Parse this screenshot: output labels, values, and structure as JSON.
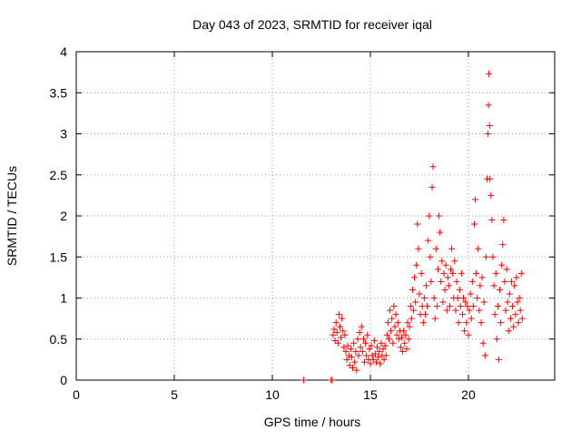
{
  "chart_data": {
    "type": "scatter",
    "title": "Day 043 of 2023, SRMTID for receiver iqal",
    "xlabel": "GPS time / hours",
    "ylabel": "SRMTID / TECUs",
    "xlim": [
      0,
      24.4
    ],
    "ylim": [
      0,
      4
    ],
    "xticks": [
      0,
      5,
      10,
      15,
      20
    ],
    "yticks": [
      0,
      0.5,
      1,
      1.5,
      2,
      2.5,
      3,
      3.5,
      4
    ],
    "xtick_labels": [
      "0",
      "5",
      "10",
      "15",
      "20"
    ],
    "ytick_labels": [
      "0",
      "0.5",
      "1",
      "1.5",
      "2",
      "2.5",
      "3",
      "3.5",
      "4"
    ],
    "grid": true,
    "marker": "+",
    "series": [
      {
        "name": "SRMTID",
        "color": "#ff0000",
        "points": [
          [
            11.6,
            0.0
          ],
          [
            13.0,
            0.0
          ],
          [
            13.05,
            0.0
          ],
          [
            13.1,
            0.55
          ],
          [
            13.15,
            0.62
          ],
          [
            13.2,
            0.48
          ],
          [
            13.25,
            0.7
          ],
          [
            13.3,
            0.58
          ],
          [
            13.35,
            0.45
          ],
          [
            13.4,
            0.8
          ],
          [
            13.45,
            0.65
          ],
          [
            13.5,
            0.52
          ],
          [
            13.55,
            0.75
          ],
          [
            13.6,
            0.6
          ],
          [
            13.65,
            0.4
          ],
          [
            13.7,
            0.55
          ],
          [
            13.75,
            0.35
          ],
          [
            13.8,
            0.25
          ],
          [
            13.85,
            0.42
          ],
          [
            13.9,
            0.3
          ],
          [
            13.95,
            0.18
          ],
          [
            14.0,
            0.38
          ],
          [
            14.05,
            0.28
          ],
          [
            14.1,
            0.15
          ],
          [
            14.15,
            0.45
          ],
          [
            14.2,
            0.22
          ],
          [
            14.25,
            0.35
          ],
          [
            14.3,
            0.12
          ],
          [
            14.35,
            0.5
          ],
          [
            14.4,
            0.3
          ],
          [
            14.45,
            0.58
          ],
          [
            14.5,
            0.4
          ],
          [
            14.55,
            0.65
          ],
          [
            14.6,
            0.35
          ],
          [
            14.65,
            0.5
          ],
          [
            14.7,
            0.22
          ],
          [
            14.75,
            0.45
          ],
          [
            14.8,
            0.3
          ],
          [
            14.85,
            0.55
          ],
          [
            14.9,
            0.25
          ],
          [
            14.95,
            0.38
          ],
          [
            15.0,
            0.2
          ],
          [
            15.05,
            0.42
          ],
          [
            15.1,
            0.3
          ],
          [
            15.15,
            0.25
          ],
          [
            15.2,
            0.48
          ],
          [
            15.25,
            0.32
          ],
          [
            15.3,
            0.22
          ],
          [
            15.35,
            0.4
          ],
          [
            15.4,
            0.28
          ],
          [
            15.45,
            0.35
          ],
          [
            15.5,
            0.2
          ],
          [
            15.55,
            0.45
          ],
          [
            15.6,
            0.3
          ],
          [
            15.65,
            0.38
          ],
          [
            15.7,
            0.25
          ],
          [
            15.75,
            0.42
          ],
          [
            15.8,
            0.3
          ],
          [
            15.85,
            0.55
          ],
          [
            15.9,
            0.7
          ],
          [
            15.95,
            0.5
          ],
          [
            16.0,
            0.85
          ],
          [
            16.05,
            0.6
          ],
          [
            16.1,
            0.75
          ],
          [
            16.15,
            0.45
          ],
          [
            16.2,
            0.9
          ],
          [
            16.25,
            0.65
          ],
          [
            16.3,
            0.8
          ],
          [
            16.35,
            0.55
          ],
          [
            16.4,
            0.7
          ],
          [
            16.45,
            0.5
          ],
          [
            16.5,
            0.6
          ],
          [
            16.55,
            0.4
          ],
          [
            16.6,
            0.52
          ],
          [
            16.65,
            0.35
          ],
          [
            16.7,
            0.6
          ],
          [
            16.75,
            0.45
          ],
          [
            16.8,
            0.55
          ],
          [
            16.85,
            0.38
          ],
          [
            16.9,
            0.7
          ],
          [
            16.95,
            0.5
          ],
          [
            17.0,
            0.65
          ],
          [
            17.05,
            0.9
          ],
          [
            17.1,
            0.75
          ],
          [
            17.15,
            1.1
          ],
          [
            17.2,
            0.85
          ],
          [
            17.25,
            1.25
          ],
          [
            17.3,
            0.95
          ],
          [
            17.35,
            1.4
          ],
          [
            17.4,
            1.9
          ],
          [
            17.45,
            1.6
          ],
          [
            17.5,
            1.05
          ],
          [
            17.55,
            0.8
          ],
          [
            17.6,
            1.3
          ],
          [
            17.65,
            0.9
          ],
          [
            17.7,
            0.7
          ],
          [
            17.75,
            1.0
          ],
          [
            17.8,
            0.8
          ],
          [
            17.85,
            1.15
          ],
          [
            17.9,
            0.9
          ],
          [
            17.95,
            1.7
          ],
          [
            18.0,
            2.0
          ],
          [
            18.05,
            1.5
          ],
          [
            18.1,
            1.2
          ],
          [
            18.15,
            2.35
          ],
          [
            18.2,
            2.6
          ],
          [
            18.25,
            1.0
          ],
          [
            18.3,
            0.75
          ],
          [
            18.35,
            1.6
          ],
          [
            18.4,
            0.9
          ],
          [
            18.45,
            1.35
          ],
          [
            18.5,
            2.0
          ],
          [
            18.55,
            1.8
          ],
          [
            18.6,
            1.2
          ],
          [
            18.65,
            1.45
          ],
          [
            18.7,
            0.95
          ],
          [
            18.75,
            1.3
          ],
          [
            18.8,
            1.1
          ],
          [
            18.85,
            1.4
          ],
          [
            18.9,
            0.85
          ],
          [
            18.95,
            1.25
          ],
          [
            19.0,
            1.15
          ],
          [
            19.05,
            0.9
          ],
          [
            19.1,
            1.35
          ],
          [
            19.15,
            1.6
          ],
          [
            19.2,
            1.3
          ],
          [
            19.25,
            1.0
          ],
          [
            19.3,
            1.45
          ],
          [
            19.35,
            0.85
          ],
          [
            19.4,
            1.2
          ],
          [
            19.45,
            1.0
          ],
          [
            19.5,
            0.7
          ],
          [
            19.55,
            1.1
          ],
          [
            19.6,
            0.9
          ],
          [
            19.65,
            1.3
          ],
          [
            19.7,
            0.8
          ],
          [
            19.75,
            1.0
          ],
          [
            19.8,
            0.6
          ],
          [
            19.85,
            0.95
          ],
          [
            19.9,
            0.7
          ],
          [
            19.95,
            0.9
          ],
          [
            20.0,
            0.55
          ],
          [
            20.05,
            0.85
          ],
          [
            20.1,
            1.05
          ],
          [
            20.15,
            0.75
          ],
          [
            20.2,
            1.2
          ],
          [
            20.25,
            0.9
          ],
          [
            20.3,
            1.9
          ],
          [
            20.35,
            2.2
          ],
          [
            20.4,
            1.3
          ],
          [
            20.45,
            1.0
          ],
          [
            20.5,
            1.6
          ],
          [
            20.55,
            0.85
          ],
          [
            20.6,
            1.15
          ],
          [
            20.65,
            0.7
          ],
          [
            20.7,
            1.25
          ],
          [
            20.75,
            0.45
          ],
          [
            20.8,
            0.95
          ],
          [
            20.85,
            0.3
          ],
          [
            20.9,
            1.5
          ],
          [
            20.95,
            2.45
          ],
          [
            21.0,
            3.0
          ],
          [
            21.02,
            3.35
          ],
          [
            21.05,
            3.73
          ],
          [
            21.08,
            3.1
          ],
          [
            21.1,
            2.45
          ],
          [
            21.15,
            2.25
          ],
          [
            21.2,
            1.95
          ],
          [
            21.25,
            1.5
          ],
          [
            21.3,
            1.15
          ],
          [
            21.35,
            0.8
          ],
          [
            21.4,
            1.3
          ],
          [
            21.45,
            0.5
          ],
          [
            21.5,
            0.9
          ],
          [
            21.55,
            0.25
          ],
          [
            21.6,
            1.1
          ],
          [
            21.65,
            0.7
          ],
          [
            21.7,
            1.4
          ],
          [
            21.75,
            1.65
          ],
          [
            21.8,
            1.95
          ],
          [
            21.85,
            1.2
          ],
          [
            21.9,
            0.85
          ],
          [
            21.95,
            1.35
          ],
          [
            22.0,
            0.95
          ],
          [
            22.05,
            0.6
          ],
          [
            22.1,
            1.05
          ],
          [
            22.15,
            0.75
          ],
          [
            22.2,
            1.2
          ],
          [
            22.25,
            0.9
          ],
          [
            22.3,
            0.65
          ],
          [
            22.35,
            1.15
          ],
          [
            22.4,
            0.8
          ],
          [
            22.45,
            1.25
          ],
          [
            22.5,
            0.95
          ],
          [
            22.55,
            0.7
          ],
          [
            22.6,
            1.0
          ],
          [
            22.65,
            0.85
          ],
          [
            22.7,
            1.3
          ],
          [
            22.75,
            0.75
          ]
        ]
      }
    ]
  }
}
